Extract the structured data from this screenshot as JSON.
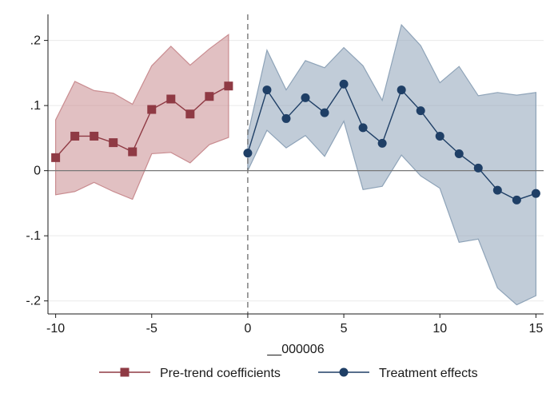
{
  "chart_data": {
    "type": "line",
    "xlabel": "__000006",
    "ylabel": "",
    "xlim": [
      -10.4,
      15.4
    ],
    "ylim": [
      -0.22,
      0.24
    ],
    "xticks": [
      -10,
      -5,
      0,
      5,
      10,
      15
    ],
    "xtick_labels": [
      "-10",
      "-5",
      "0",
      "5",
      "10",
      "15"
    ],
    "yticks": [
      -0.2,
      -0.1,
      0,
      0.1,
      0.2
    ],
    "ytick_labels": [
      "-.2",
      "-.1",
      "0",
      ".1",
      ".2"
    ],
    "grid": "horizontal",
    "reference_lines": {
      "x": 0,
      "y": 0
    },
    "legend_position": "bottom",
    "series": [
      {
        "name": "Pre-trend coefficients",
        "marker": "square",
        "color": "#8f3a44",
        "band_color": "#c98c90",
        "x": [
          -10,
          -9,
          -8,
          -7,
          -6,
          -5,
          -4,
          -3,
          -2,
          -1
        ],
        "y": [
          0.02,
          0.053,
          0.053,
          0.043,
          0.029,
          0.094,
          0.11,
          0.087,
          0.114,
          0.13
        ],
        "ci_low": [
          -0.037,
          -0.032,
          -0.018,
          -0.032,
          -0.044,
          0.026,
          0.028,
          0.012,
          0.04,
          0.051
        ],
        "ci_high": [
          0.078,
          0.137,
          0.123,
          0.119,
          0.102,
          0.161,
          0.191,
          0.162,
          0.187,
          0.209
        ]
      },
      {
        "name": "Treatment effects",
        "marker": "circle",
        "color": "#1f3f66",
        "band_color": "#8ea3b8",
        "x": [
          0,
          1,
          2,
          3,
          4,
          5,
          6,
          7,
          8,
          9,
          10,
          11,
          12,
          13,
          14,
          15
        ],
        "y": [
          0.027,
          0.124,
          0.08,
          0.112,
          0.089,
          0.133,
          0.066,
          0.042,
          0.124,
          0.092,
          0.053,
          0.026,
          0.004,
          -0.03,
          -0.045,
          -0.035
        ],
        "ci_low": [
          0.0,
          0.062,
          0.035,
          0.054,
          0.022,
          0.076,
          -0.029,
          -0.024,
          0.024,
          -0.008,
          -0.027,
          -0.11,
          -0.105,
          -0.18,
          -0.206,
          -0.192
        ],
        "ci_high": [
          0.055,
          0.185,
          0.124,
          0.169,
          0.158,
          0.189,
          0.161,
          0.108,
          0.224,
          0.192,
          0.135,
          0.16,
          0.115,
          0.12,
          0.116,
          0.12
        ]
      }
    ]
  }
}
